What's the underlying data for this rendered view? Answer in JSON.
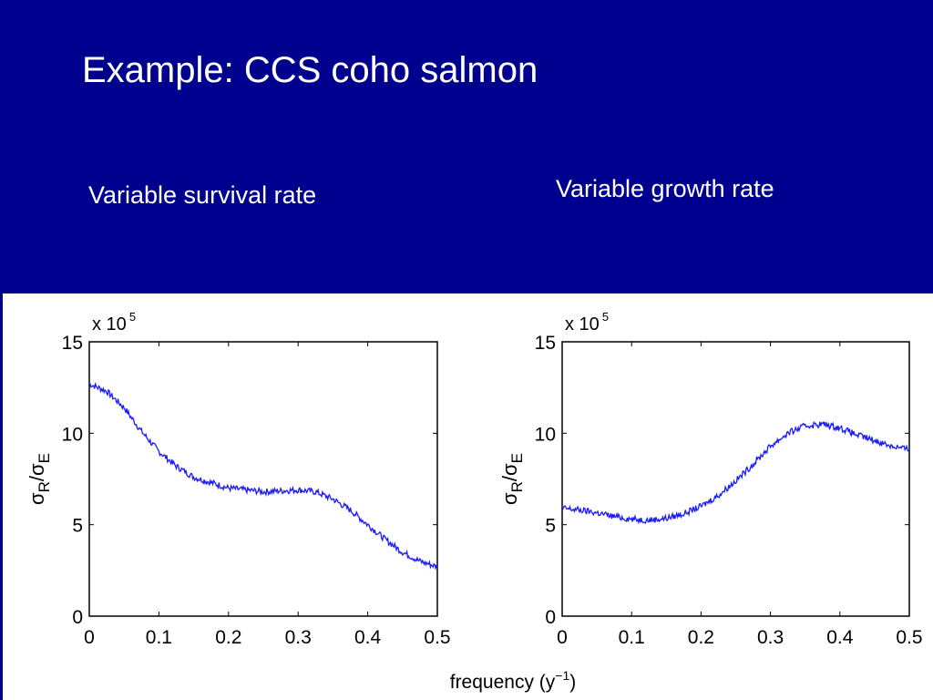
{
  "slide": {
    "title": "Example: CCS coho salmon",
    "left_label": "Variable survival rate",
    "right_label": "Variable growth rate"
  },
  "colors": {
    "background": "#00008f",
    "text": "#ffffff",
    "series": "#1a1aff"
  },
  "chart_data": [
    {
      "type": "line",
      "title": "Variable survival rate",
      "ylabel": "σR/σE",
      "y_multiplier": "x 10",
      "y_multiplier_exponent": "5",
      "xlabel": "frequency (y",
      "xlabel_exponent": "−1",
      "xlabel_close": ")",
      "xlim": [
        0,
        0.5
      ],
      "ylim": [
        0,
        15
      ],
      "xticks": [
        "0",
        "0.1",
        "0.2",
        "0.3",
        "0.4",
        "0.5"
      ],
      "yticks": [
        "0",
        "5",
        "10",
        "15"
      ],
      "grid": false,
      "series": [
        {
          "x": [
            0,
            0.025,
            0.05,
            0.075,
            0.1,
            0.125,
            0.15,
            0.175,
            0.2,
            0.225,
            0.25,
            0.275,
            0.3,
            0.325,
            0.35,
            0.375,
            0.4,
            0.425,
            0.45,
            0.475,
            0.5
          ],
          "y": [
            12.7,
            12.3,
            11.4,
            10.1,
            9.0,
            8.2,
            7.6,
            7.3,
            7.0,
            6.9,
            6.8,
            6.85,
            6.9,
            6.8,
            6.4,
            5.8,
            5.0,
            4.2,
            3.5,
            3.0,
            2.7
          ]
        }
      ]
    },
    {
      "type": "line",
      "title": "Variable growth rate",
      "ylabel": "σR/σE",
      "y_multiplier": "x 10",
      "y_multiplier_exponent": "5",
      "xlabel": "",
      "xlim": [
        0,
        0.5
      ],
      "ylim": [
        0,
        15
      ],
      "xticks": [
        "0",
        "0.1",
        "0.2",
        "0.3",
        "0.4",
        "0.5"
      ],
      "yticks": [
        "0",
        "5",
        "10",
        "15"
      ],
      "grid": false,
      "series": [
        {
          "x": [
            0,
            0.025,
            0.05,
            0.075,
            0.1,
            0.125,
            0.15,
            0.175,
            0.2,
            0.225,
            0.25,
            0.275,
            0.3,
            0.325,
            0.35,
            0.375,
            0.4,
            0.425,
            0.45,
            0.475,
            0.5
          ],
          "y": [
            5.9,
            5.8,
            5.65,
            5.45,
            5.3,
            5.25,
            5.35,
            5.6,
            6.0,
            6.6,
            7.4,
            8.3,
            9.3,
            10.0,
            10.4,
            10.5,
            10.3,
            9.9,
            9.6,
            9.3,
            9.1
          ]
        }
      ]
    }
  ]
}
